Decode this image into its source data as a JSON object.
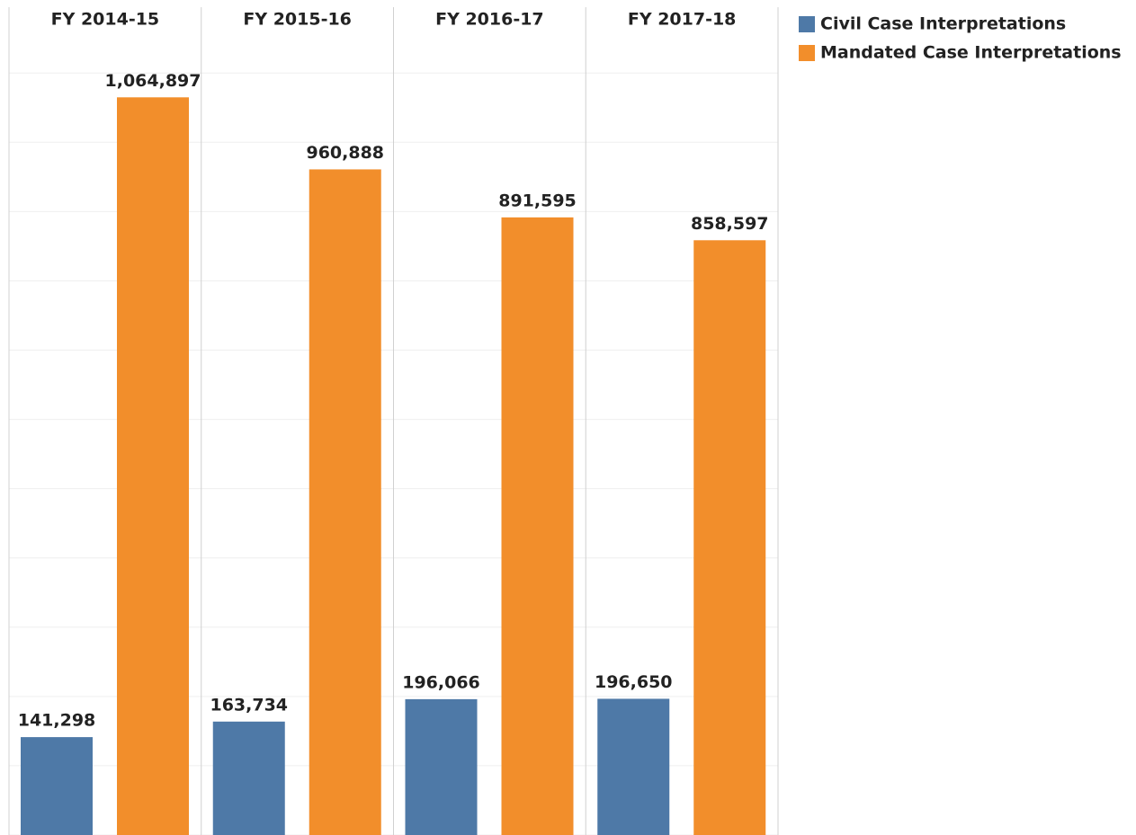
{
  "chart_data": {
    "type": "bar",
    "categories": [
      "FY 2014-15",
      "FY 2015-16",
      "FY 2016-17",
      "FY 2017-18"
    ],
    "series": [
      {
        "name": "Civil Case Interpretations",
        "color": "#4e79a7",
        "values": [
          141298,
          163734,
          196066,
          196650
        ],
        "value_labels": [
          "141,298",
          "163,734",
          "196,066",
          "196,650"
        ]
      },
      {
        "name": "Mandated Case Interpretations",
        "color": "#f28e2b",
        "values": [
          1064897,
          960888,
          891595,
          858597
        ],
        "value_labels": [
          "1,064,897",
          "960,888",
          "891,595",
          "858,597"
        ]
      }
    ],
    "ylim": [
      0,
      1160000
    ],
    "yticks": [
      0,
      100000,
      200000,
      300000,
      400000,
      500000,
      600000,
      700000,
      800000,
      900000,
      1000000,
      1100000
    ],
    "grid": true,
    "legend": "right"
  }
}
